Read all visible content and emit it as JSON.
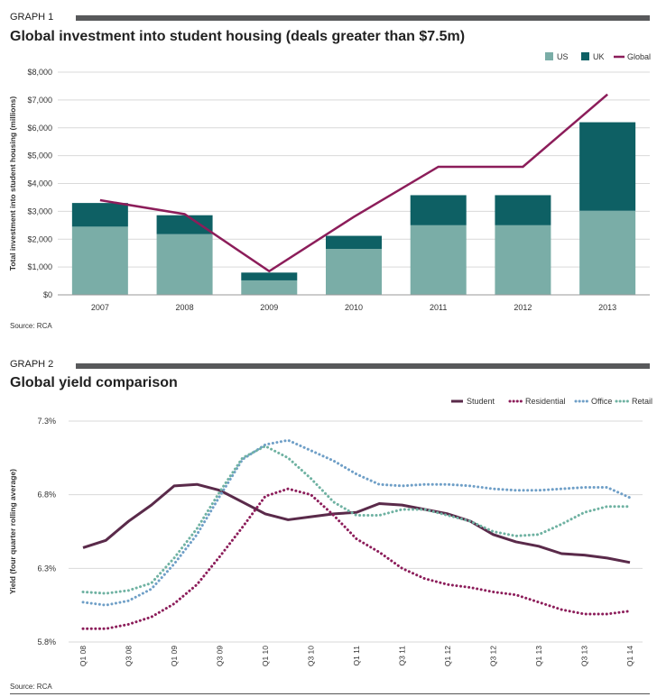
{
  "graph1": {
    "label": "GRAPH 1",
    "title": "Global investment into student housing (deals greater than $7.5m)",
    "source": "Source: RCA"
  },
  "graph2": {
    "label": "GRAPH 2",
    "title": "Global yield comparison",
    "source": "Source: RCA"
  },
  "chart_data": [
    {
      "type": "bar",
      "stacked": true,
      "title": "Global investment into student housing (deals greater than $7.5m)",
      "xlabel": "",
      "ylabel": "Total investment into student housing (millions)",
      "categories": [
        "2007",
        "2008",
        "2009",
        "2010",
        "2011",
        "2012",
        "2013"
      ],
      "ylim": [
        0,
        8000
      ],
      "yticks": [
        0,
        1000,
        2000,
        3000,
        4000,
        5000,
        6000,
        7000,
        8000
      ],
      "ytick_labels": [
        "$0",
        "$1,000",
        "$2,000",
        "$3,000",
        "$4,000",
        "$5,000",
        "$6,000",
        "$7,000",
        "$8,000"
      ],
      "series": [
        {
          "name": "US",
          "type": "bar",
          "color": "#7aada7",
          "values": [
            2450,
            2180,
            520,
            1650,
            2500,
            2500,
            3020
          ]
        },
        {
          "name": "UK",
          "type": "bar",
          "color": "#0e6064",
          "values": [
            850,
            680,
            280,
            470,
            1080,
            1080,
            3180
          ]
        },
        {
          "name": "Global",
          "type": "line",
          "color": "#8c1d5a",
          "values": [
            3400,
            2900,
            850,
            2800,
            4600,
            4600,
            7200
          ]
        }
      ],
      "legend": "top-right",
      "grid": true
    },
    {
      "type": "line",
      "title": "Global yield comparison",
      "xlabel": "",
      "ylabel": "Yield (four quarter rolling average)",
      "x": [
        "Q1 08",
        "Q2 08",
        "Q3 08",
        "Q4 08",
        "Q1 09",
        "Q2 09",
        "Q3 09",
        "Q4 09",
        "Q1 10",
        "Q2 10",
        "Q3 10",
        "Q4 10",
        "Q1 11",
        "Q2 11",
        "Q3 11",
        "Q4 11",
        "Q1 12",
        "Q2 12",
        "Q3 12",
        "Q4 12",
        "Q1 13",
        "Q2 13",
        "Q3 13",
        "Q4 13",
        "Q1 14"
      ],
      "xtick_labels": [
        "Q1 08",
        "Q3 08",
        "Q1 09",
        "Q3 09",
        "Q1 10",
        "Q3 10",
        "Q1 11",
        "Q3 11",
        "Q1 12",
        "Q3 12",
        "Q1 13",
        "Q3 13",
        "Q1 14"
      ],
      "ylim": [
        5.8,
        7.3
      ],
      "yticks": [
        5.8,
        6.3,
        6.8,
        7.3
      ],
      "ytick_labels": [
        "5.8%",
        "6.3%",
        "6.8%",
        "7.3%"
      ],
      "series": [
        {
          "name": "Student",
          "style": "solid",
          "color": "#5a2a4a",
          "values": [
            6.44,
            6.49,
            6.62,
            6.73,
            6.86,
            6.87,
            6.83,
            6.75,
            6.67,
            6.63,
            6.65,
            6.67,
            6.68,
            6.74,
            6.73,
            6.7,
            6.67,
            6.62,
            6.53,
            6.48,
            6.45,
            6.4,
            6.39,
            6.37,
            6.34
          ]
        },
        {
          "name": "Residential",
          "style": "dotted",
          "color": "#8c1d5a",
          "values": [
            5.89,
            5.89,
            5.92,
            5.97,
            6.06,
            6.19,
            6.38,
            6.58,
            6.79,
            6.84,
            6.8,
            6.66,
            6.5,
            6.41,
            6.3,
            6.23,
            6.19,
            6.17,
            6.14,
            6.12,
            6.07,
            6.02,
            5.99,
            5.99,
            6.01
          ]
        },
        {
          "name": "Office",
          "style": "dotted",
          "color": "#6f9fc7",
          "values": [
            6.07,
            6.05,
            6.08,
            6.16,
            6.33,
            6.53,
            6.79,
            7.04,
            7.14,
            7.17,
            7.1,
            7.03,
            6.94,
            6.87,
            6.86,
            6.87,
            6.87,
            6.86,
            6.84,
            6.83,
            6.83,
            6.84,
            6.85,
            6.85,
            6.78
          ]
        },
        {
          "name": "Retail",
          "style": "dotted",
          "color": "#6fb2a2",
          "values": [
            6.14,
            6.13,
            6.15,
            6.2,
            6.37,
            6.57,
            6.82,
            7.05,
            7.13,
            7.05,
            6.91,
            6.75,
            6.66,
            6.66,
            6.7,
            6.7,
            6.66,
            6.62,
            6.55,
            6.52,
            6.53,
            6.6,
            6.68,
            6.72,
            6.72
          ]
        }
      ],
      "legend": "top-right",
      "grid": true
    }
  ]
}
